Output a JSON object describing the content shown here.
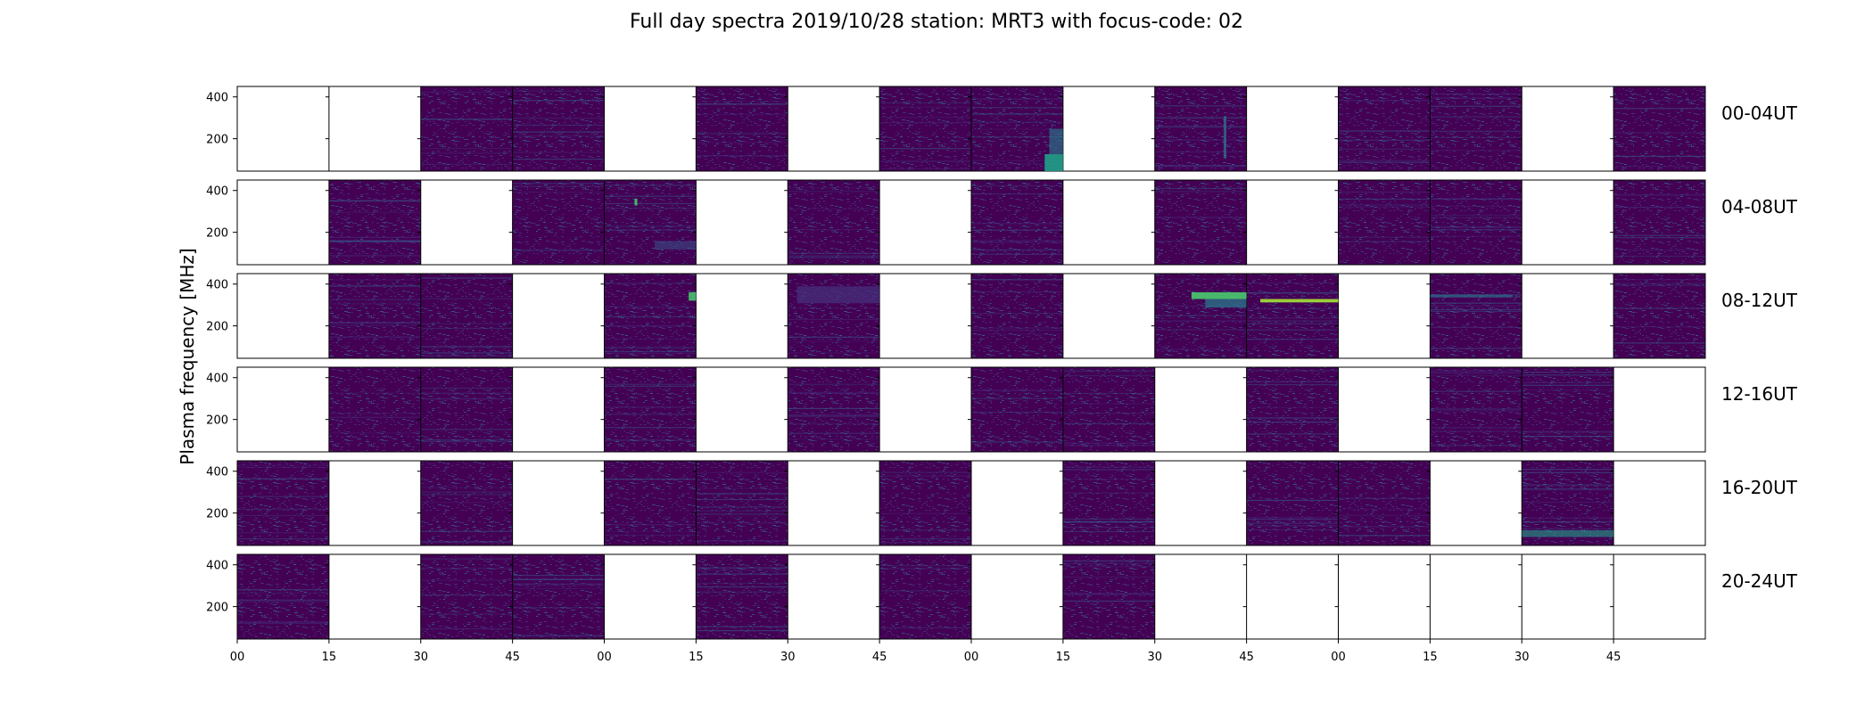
{
  "chart_data": {
    "type": "heatmap",
    "title": "Full day spectra 2019/10/28 station: MRT3 with focus-code: 02",
    "ylabel": "Plasma frequency [MHz]",
    "xlabel": "",
    "y_ticks": [
      "200",
      "400"
    ],
    "ylim": [
      45,
      450
    ],
    "x_ticks": [
      "00",
      "15",
      "30",
      "45",
      "00",
      "15",
      "30",
      "45",
      "00",
      "15",
      "30",
      "45",
      "00",
      "15",
      "30",
      "45"
    ],
    "colormap": [
      "#440154",
      "#46327e",
      "#365c8d",
      "#277f8e",
      "#1fa187",
      "#4ac16d",
      "#a0da39"
    ],
    "panels_per_row": 16,
    "minutes_per_panel": 15,
    "rows": [
      {
        "label": "00-04UT",
        "has_data": [
          0,
          0,
          1,
          1,
          0,
          1,
          0,
          1,
          1,
          0,
          1,
          0,
          1,
          1,
          0,
          1
        ]
      },
      {
        "label": "04-08UT",
        "has_data": [
          0,
          1,
          0,
          1,
          1,
          0,
          1,
          0,
          1,
          0,
          1,
          0,
          1,
          1,
          0,
          1
        ]
      },
      {
        "label": "08-12UT",
        "has_data": [
          0,
          1,
          1,
          0,
          1,
          0,
          1,
          0,
          1,
          0,
          1,
          1,
          0,
          1,
          0,
          1
        ]
      },
      {
        "label": "12-16UT",
        "has_data": [
          0,
          1,
          1,
          0,
          1,
          0,
          1,
          0,
          1,
          1,
          0,
          1,
          0,
          1,
          1,
          0
        ]
      },
      {
        "label": "16-20UT",
        "has_data": [
          1,
          0,
          1,
          0,
          1,
          1,
          0,
          1,
          0,
          1,
          0,
          1,
          1,
          0,
          1,
          0
        ]
      },
      {
        "label": "20-24UT",
        "has_data": [
          1,
          0,
          1,
          1,
          0,
          1,
          0,
          1,
          0,
          1,
          0,
          0,
          0,
          0,
          0,
          0
        ]
      }
    ]
  }
}
